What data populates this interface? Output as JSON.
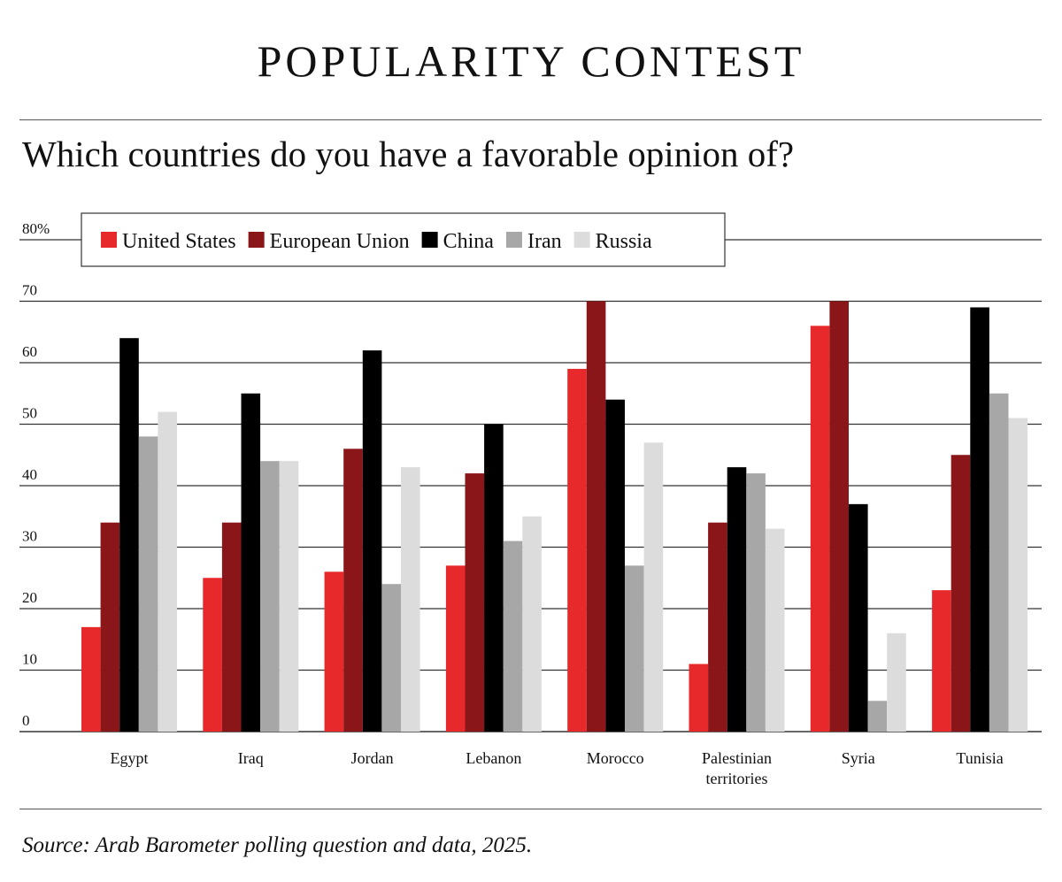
{
  "header": {
    "title": "POPULARITY CONTEST",
    "subtitle": "Which countries do you have a favorable opinion of?"
  },
  "footer": {
    "source": "Source: Arab Barometer polling question and data, 2025."
  },
  "chart_data": {
    "type": "bar",
    "categories": [
      "Egypt",
      "Iraq",
      "Jordan",
      "Lebanon",
      "Morocco",
      "Palestinian territories",
      "Syria",
      "Tunisia"
    ],
    "category_lines": [
      [
        "Egypt"
      ],
      [
        "Iraq"
      ],
      [
        "Jordan"
      ],
      [
        "Lebanon"
      ],
      [
        "Morocco"
      ],
      [
        "Palestinian",
        "territories"
      ],
      [
        "Syria"
      ],
      [
        "Tunisia"
      ]
    ],
    "series": [
      {
        "name": "United States",
        "color": "#e8292b",
        "values": [
          17,
          25,
          26,
          27,
          59,
          11,
          66,
          23
        ]
      },
      {
        "name": "European Union",
        "color": "#8b1619",
        "values": [
          34,
          34,
          46,
          42,
          70,
          34,
          70,
          45
        ]
      },
      {
        "name": "China",
        "color": "#000000",
        "values": [
          64,
          55,
          62,
          50,
          54,
          43,
          37,
          69
        ]
      },
      {
        "name": "Iran",
        "color": "#a7a7a8",
        "values": [
          48,
          44,
          24,
          31,
          27,
          42,
          5,
          55
        ]
      },
      {
        "name": "Russia",
        "color": "#dcdcdd",
        "values": [
          52,
          44,
          43,
          35,
          47,
          33,
          16,
          51
        ]
      }
    ],
    "yticks": [
      0,
      10,
      20,
      30,
      40,
      50,
      60,
      70,
      80
    ],
    "ytick_labels": [
      "0",
      "10",
      "20",
      "30",
      "40",
      "50",
      "60",
      "70",
      "80%"
    ],
    "ylim": [
      0,
      80
    ],
    "grid": true,
    "legend_position": "top-left"
  }
}
